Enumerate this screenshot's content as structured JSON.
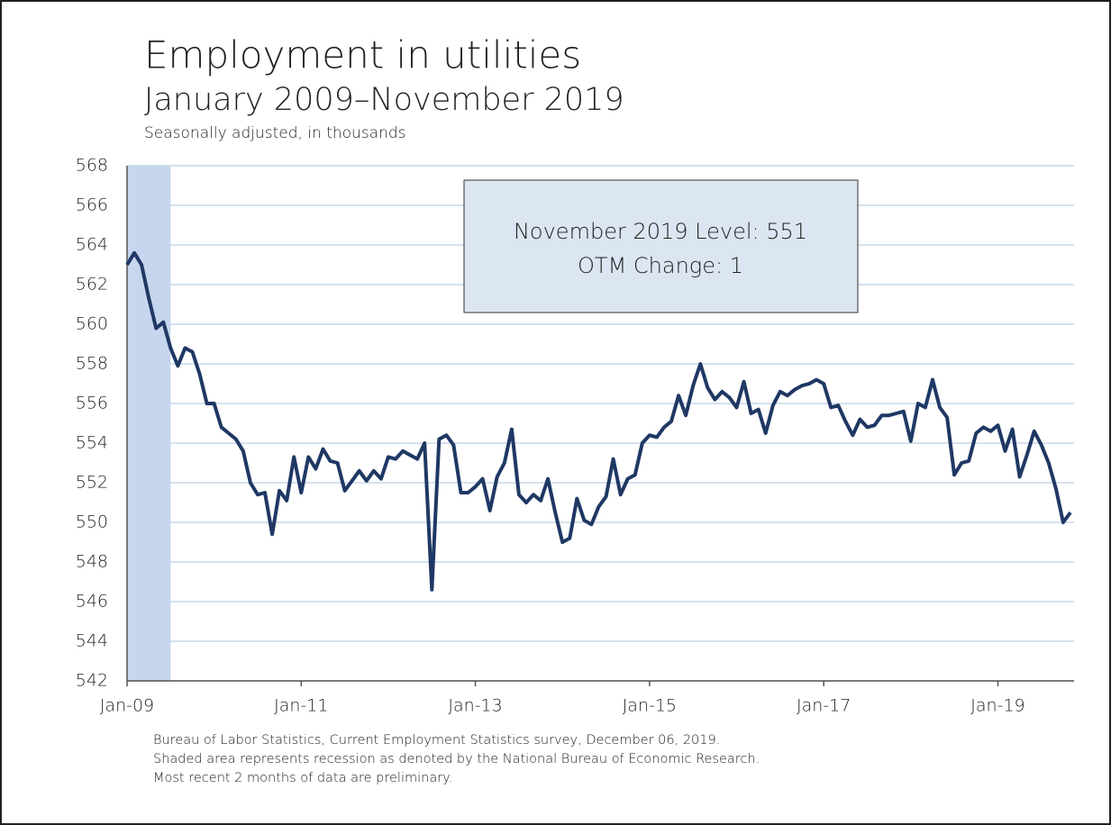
{
  "chart_data": {
    "type": "line",
    "title": "Employment in utilities",
    "subtitle": "January 2009–November 2019",
    "y_label": "Seasonally adjusted, in thousands",
    "annotations": [
      "November 2019 Level: 551",
      "OTM Change: 1"
    ],
    "notes": [
      "Bureau of Labor Statistics, Current Employment Statistics survey, December 06, 2019.",
      "Shaded area represents recession as denoted by the National Bureau of Economic Research.",
      "Most recent 2 months of data are preliminary."
    ],
    "categories": [
      "Jan-09",
      null,
      null,
      null,
      null,
      null,
      null,
      null,
      null,
      null,
      null,
      null,
      null,
      null,
      null,
      null,
      null,
      null,
      null,
      null,
      null,
      null,
      null,
      null,
      "Jan-11",
      null,
      null,
      null,
      null,
      null,
      null,
      null,
      null,
      null,
      null,
      null,
      null,
      null,
      null,
      null,
      null,
      null,
      null,
      null,
      null,
      null,
      null,
      null,
      "Jan-13",
      null,
      null,
      null,
      null,
      null,
      null,
      null,
      null,
      null,
      null,
      null,
      null,
      null,
      null,
      null,
      null,
      null,
      null,
      null,
      null,
      null,
      null,
      null,
      "Jan-15",
      null,
      null,
      null,
      null,
      null,
      null,
      null,
      null,
      null,
      null,
      null,
      null,
      null,
      null,
      null,
      null,
      null,
      null,
      null,
      null,
      null,
      null,
      null,
      "Jan-17",
      null,
      null,
      null,
      null,
      null,
      null,
      null,
      null,
      null,
      null,
      null,
      null,
      null,
      null,
      null,
      null,
      null,
      null,
      null,
      null,
      null,
      null,
      null,
      "Jan-19",
      null,
      null,
      null,
      null,
      null,
      null,
      null,
      null,
      null,
      null
    ],
    "series": [
      {
        "name": "Employment in utilities",
        "color": "#1f3864",
        "values": [
          563.0,
          563.6,
          563.0,
          561.3,
          559.8,
          560.1,
          558.8,
          557.9,
          558.8,
          558.6,
          557.5,
          556.0,
          556.0,
          554.8,
          554.5,
          554.2,
          553.6,
          552.0,
          551.4,
          551.5,
          549.4,
          551.6,
          551.1,
          553.3,
          551.5,
          553.3,
          552.7,
          553.7,
          553.1,
          553.0,
          551.6,
          552.1,
          552.6,
          552.1,
          552.6,
          552.2,
          553.3,
          553.2,
          553.6,
          553.4,
          553.2,
          554.0,
          546.6,
          554.2,
          554.4,
          553.9,
          551.5,
          551.5,
          551.8,
          552.2,
          550.6,
          552.3,
          553.0,
          554.7,
          551.4,
          551.0,
          551.4,
          551.1,
          552.2,
          550.5,
          549.0,
          549.2,
          551.2,
          550.1,
          549.9,
          550.8,
          551.3,
          553.2,
          551.4,
          552.2,
          552.4,
          554.0,
          554.4,
          554.3,
          554.8,
          555.1,
          556.4,
          555.4,
          556.9,
          558.0,
          556.8,
          556.2,
          556.6,
          556.3,
          555.8,
          557.1,
          555.5,
          555.7,
          554.5,
          555.9,
          556.6,
          556.4,
          556.7,
          556.9,
          557.0,
          557.2,
          557.0,
          555.8,
          555.9,
          555.1,
          554.4,
          555.2,
          554.8,
          554.9,
          555.4,
          555.4,
          555.5,
          555.6,
          554.1,
          556.0,
          555.8,
          557.2,
          555.8,
          555.3,
          552.4,
          553.0,
          553.1,
          554.5,
          554.8,
          554.6,
          554.9,
          553.6,
          554.7,
          552.3,
          553.4,
          554.6,
          553.9,
          553.0,
          551.7,
          550.0,
          550.5
        ]
      }
    ],
    "shaded_range": [
      0,
      6
    ],
    "ylim": [
      542,
      568
    ],
    "yticks": [
      542,
      544,
      546,
      548,
      550,
      552,
      554,
      556,
      558,
      560,
      562,
      564,
      566,
      568
    ],
    "grid": true
  }
}
